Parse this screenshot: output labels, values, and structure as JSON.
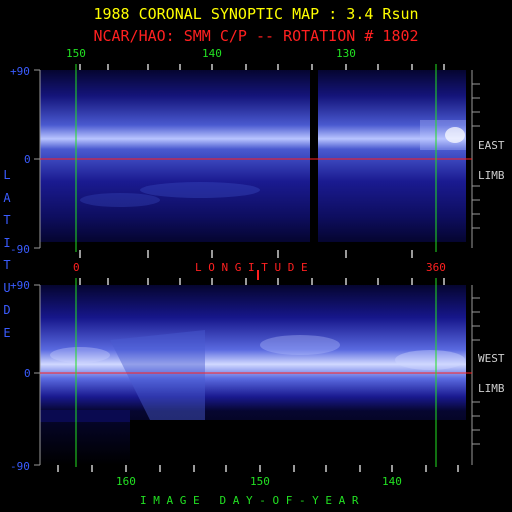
{
  "title": "1988 CORONAL SYNOPTIC MAP : 3.4 Rsun",
  "subtitle": "NCAR/HAO: SMM C/P -- ROTATION # 1802",
  "top_panel": {
    "x_ticks": [
      "150",
      "140",
      "130"
    ],
    "y_ticks": [
      "+90",
      "0",
      "-90"
    ],
    "side_label_1": "EAST",
    "side_label_2": "LIMB"
  },
  "longitude_axis": {
    "label": "L O N G I T U D E",
    "start": "0",
    "end": "360"
  },
  "bottom_panel": {
    "x_ticks": [
      "160",
      "150",
      "140"
    ],
    "y_ticks": [
      "+90",
      "0",
      "-90"
    ],
    "side_label_1": "WEST",
    "side_label_2": "LIMB",
    "x_axis_label": "I M A G E   D A Y - O F - Y E A R"
  },
  "latitude_label": [
    "L",
    "A",
    "T",
    "I",
    "T",
    "U",
    "D",
    "E"
  ],
  "colors": {
    "title": "#ffff00",
    "subtitle": "#ff2020",
    "marker_green": "#22e022",
    "equator_red": "#ff2020",
    "latitude_blue": "#3a5cff",
    "corona_dark": "#0a0a5a",
    "corona_bright": "#e0e8ff"
  }
}
